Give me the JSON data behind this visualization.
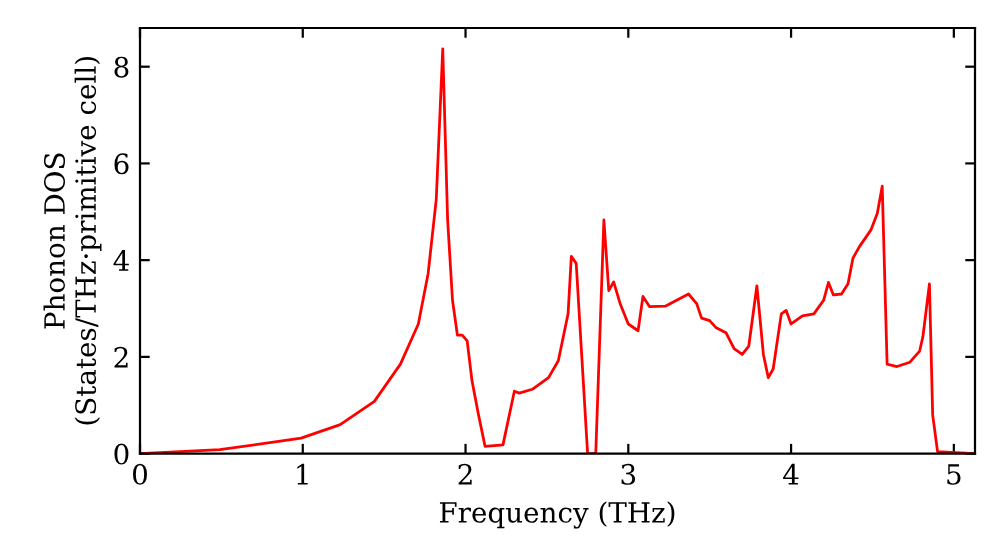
{
  "chart_data": {
    "type": "line",
    "xlabel": "Frequency (THz)",
    "ylabel": "Phonon DOS\n(States/THz·primitive cell)",
    "x": [
      0,
      0.49,
      0.99,
      1.23,
      1.44,
      1.6,
      1.71,
      1.77,
      1.82,
      1.86,
      1.89,
      1.92,
      1.95,
      1.98,
      2.01,
      2.04,
      2.08,
      2.12,
      2.23,
      2.3,
      2.33,
      2.41,
      2.51,
      2.57,
      2.63,
      2.65,
      2.68,
      2.75,
      2.8,
      2.85,
      2.88,
      2.91,
      2.95,
      3.0,
      3.06,
      3.09,
      3.13,
      3.23,
      3.37,
      3.42,
      3.45,
      3.5,
      3.54,
      3.6,
      3.65,
      3.7,
      3.74,
      3.79,
      3.83,
      3.86,
      3.89,
      3.94,
      3.97,
      4.0,
      4.07,
      4.14,
      4.2,
      4.23,
      4.26,
      4.31,
      4.35,
      4.38,
      4.42,
      4.49,
      4.53,
      4.56,
      4.59,
      4.65,
      4.73,
      4.79,
      4.81,
      4.85,
      4.87,
      4.9,
      5.12
    ],
    "series": [
      {
        "color": "#ff0000",
        "values": [
          0,
          0.08,
          0.32,
          0.6,
          1.08,
          1.85,
          2.68,
          3.72,
          5.25,
          8.37,
          4.83,
          3.17,
          2.45,
          2.45,
          2.33,
          1.5,
          0.8,
          0.15,
          0.18,
          1.29,
          1.25,
          1.33,
          1.57,
          1.92,
          2.89,
          4.08,
          3.93,
          0,
          0,
          4.83,
          3.37,
          3.55,
          3.1,
          2.68,
          2.54,
          3.25,
          3.04,
          3.05,
          3.3,
          3.1,
          2.8,
          2.75,
          2.6,
          2.5,
          2.17,
          2.05,
          2.22,
          3.47,
          2.05,
          1.57,
          1.75,
          2.89,
          2.96,
          2.68,
          2.85,
          2.89,
          3.17,
          3.54,
          3.28,
          3.3,
          3.51,
          4.04,
          4.28,
          4.62,
          4.97,
          5.53,
          1.85,
          1.8,
          1.89,
          2.12,
          2.42,
          3.51,
          0.8,
          0.04,
          0
        ]
      }
    ],
    "xlim": [
      0,
      5.13
    ],
    "ylim": [
      0,
      8.8
    ],
    "xticks": [
      0,
      1,
      2,
      3,
      4,
      5
    ],
    "yticks": [
      0,
      2,
      4,
      6,
      8
    ],
    "grid": false,
    "legend": false,
    "marker": "none",
    "line_style": "solid"
  }
}
